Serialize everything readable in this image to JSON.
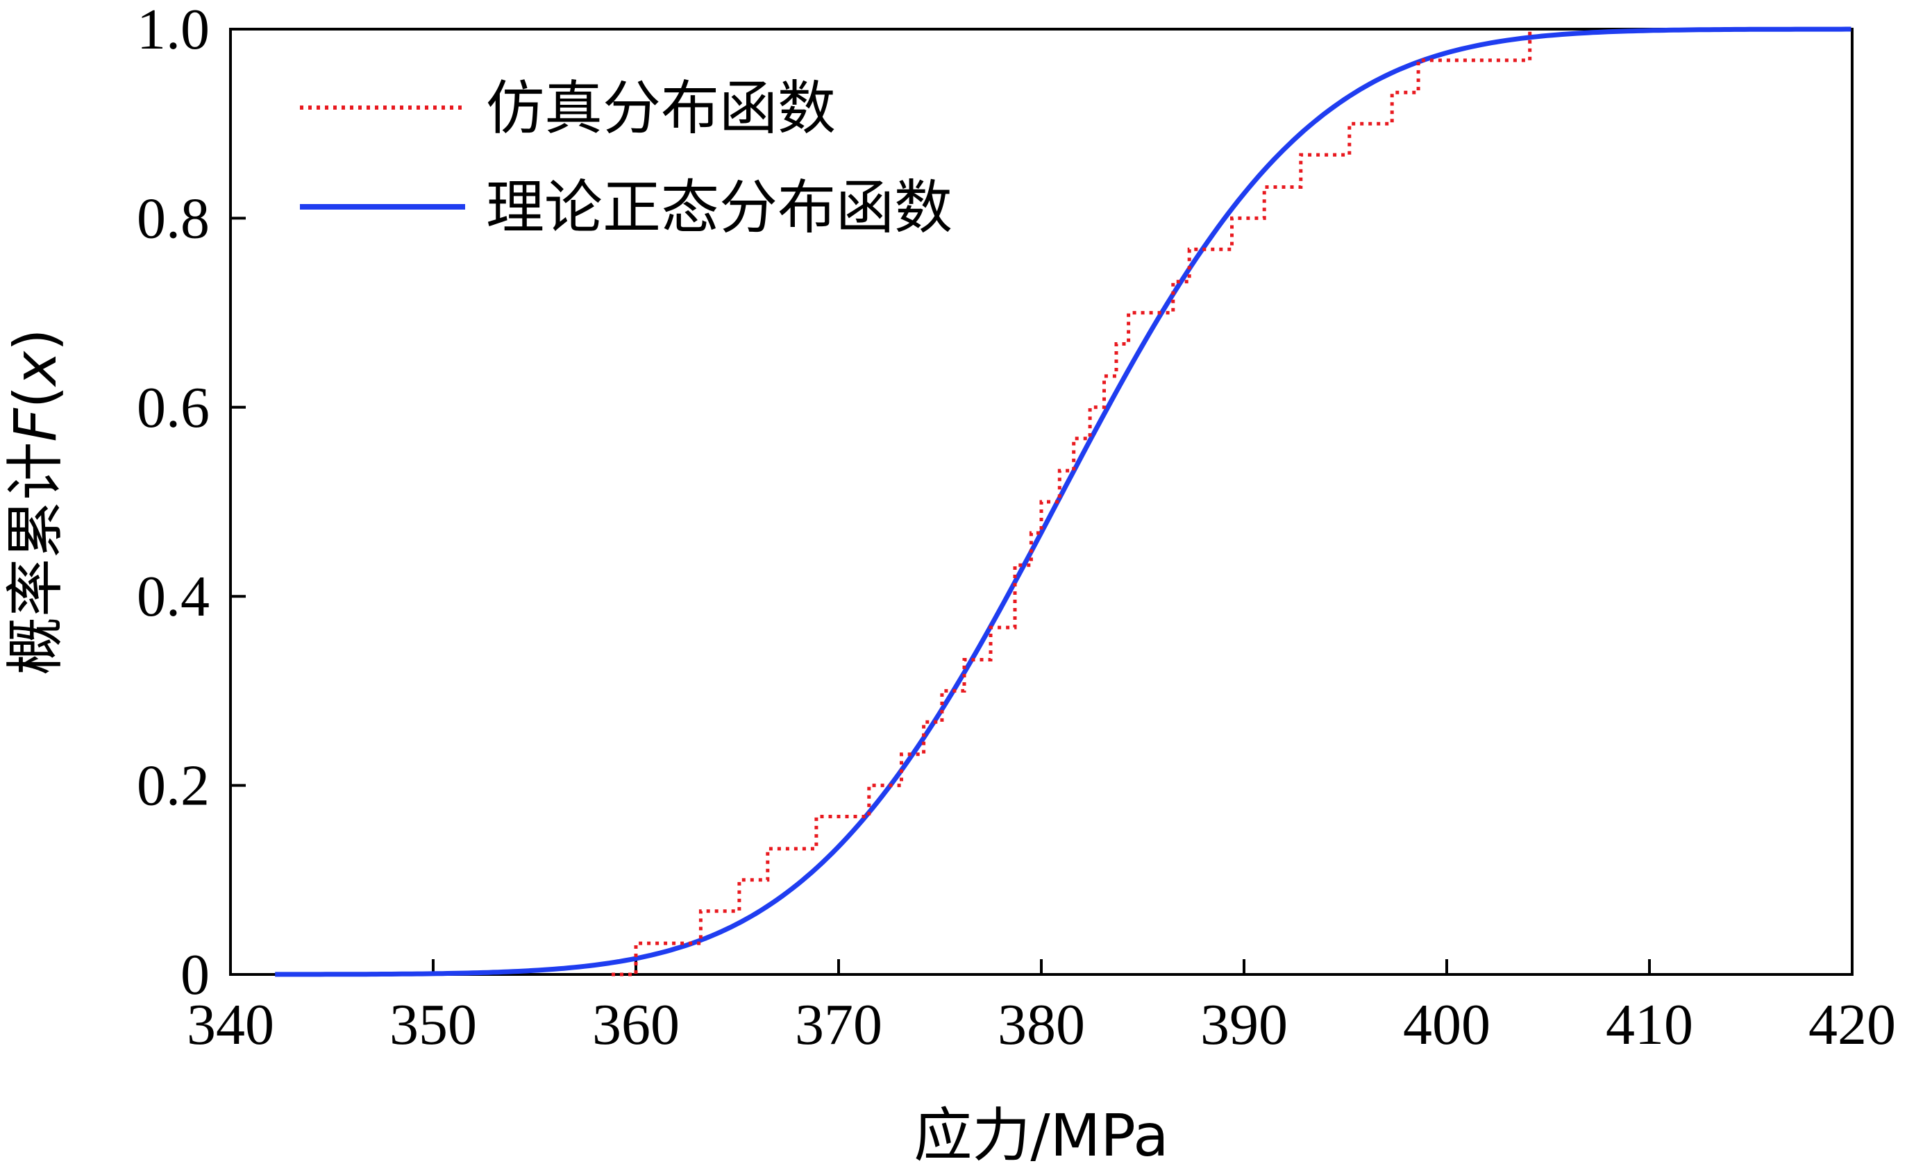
{
  "chart_data": {
    "type": "line",
    "title": "",
    "xlabel": "应力/MPa",
    "ylabel_prefix": "概率累计",
    "ylabel_func": "F",
    "ylabel_open": "(",
    "ylabel_var": "x",
    "ylabel_close": ")",
    "xlim": [
      340,
      420
    ],
    "ylim": [
      0,
      1
    ],
    "xticks": [
      340,
      350,
      360,
      370,
      380,
      390,
      400,
      410,
      420
    ],
    "yticks": [
      0,
      0.2,
      0.4,
      0.6,
      0.8,
      1.0
    ],
    "xtick_labels": [
      "340",
      "350",
      "360",
      "370",
      "380",
      "390",
      "400",
      "410",
      "420"
    ],
    "ytick_labels": [
      "0",
      "0.2",
      "0.4",
      "0.6",
      "0.8",
      "1.0"
    ],
    "grid": false,
    "legend_position": "top-left",
    "series": [
      {
        "name": "仿真分布函数",
        "style": "dotted-step",
        "color": "#e8191f",
        "x": [
          358.8,
          360.0,
          361.4,
          362.7,
          363.2,
          364.8,
          365.1,
          366.1,
          366.5,
          368.6,
          368.9,
          371.2,
          371.5,
          372.6,
          373.1,
          374.0,
          374.2,
          374.6,
          375.1,
          375.7,
          376.2,
          377.0,
          377.5,
          377.8,
          378.7,
          379.5,
          380.0,
          380.9,
          381.6,
          382.4,
          383.1,
          383.7,
          384.3,
          386.1,
          386.5,
          387.3,
          388.4,
          389.4,
          390.5,
          391.0,
          392.3,
          392.8,
          394.3,
          395.2,
          397.1,
          397.3,
          398.0,
          398.6,
          404.1
        ],
        "y": [
          0,
          0.033,
          0.033,
          0.033,
          0.067,
          0.067,
          0.1,
          0.1,
          0.133,
          0.133,
          0.167,
          0.167,
          0.2,
          0.2,
          0.233,
          0.233,
          0.267,
          0.267,
          0.3,
          0.3,
          0.333,
          0.333,
          0.367,
          0.367,
          0.433,
          0.467,
          0.5,
          0.533,
          0.567,
          0.6,
          0.633,
          0.667,
          0.7,
          0.7,
          0.733,
          0.767,
          0.767,
          0.8,
          0.8,
          0.833,
          0.833,
          0.867,
          0.867,
          0.9,
          0.9,
          0.933,
          0.933,
          0.967,
          1.0
        ]
      },
      {
        "name": "理论正态分布函数",
        "style": "solid",
        "color": "#1f3df0",
        "mu": 380.8,
        "sigma": 9.8,
        "x_range": [
          342.2,
          420
        ]
      }
    ]
  }
}
